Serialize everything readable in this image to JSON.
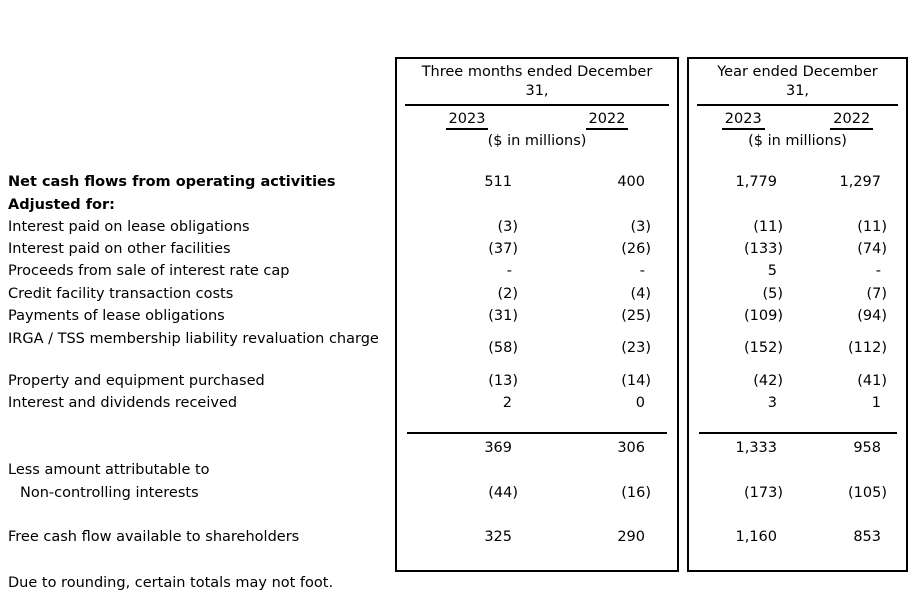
{
  "boxes": [
    {
      "title": "Three months ended December 31,",
      "col_2023": "2023",
      "col_2022": "2022",
      "units": "($ in millions)"
    },
    {
      "title": "Year ended December 31,",
      "col_2023": "2023",
      "col_2022": "2022",
      "units": "($ in millions)"
    }
  ],
  "rows": [
    {
      "label": "Net cash flows from operating activities",
      "values": [
        "511",
        "400",
        "1,779",
        "1,297"
      ]
    },
    {
      "label": "Adjusted for:",
      "values": [
        "",
        "",
        "",
        ""
      ]
    },
    {
      "label": "Interest paid on lease obligations",
      "values": [
        "(3)",
        "(3)",
        "(11)",
        "(11)"
      ]
    },
    {
      "label": "Interest paid on other facilities",
      "values": [
        "(37)",
        "(26)",
        "(133)",
        "(74)"
      ]
    },
    {
      "label": "Proceeds from sale of interest rate cap",
      "values": [
        "-",
        "-",
        "5",
        "-"
      ]
    },
    {
      "label": "Credit facility transaction costs",
      "values": [
        "(2)",
        "(4)",
        "(5)",
        "(7)"
      ]
    },
    {
      "label": "Payments of lease obligations",
      "values": [
        "(31)",
        "(25)",
        "(109)",
        "(94)"
      ]
    },
    {
      "label": "IRGA / TSS membership liability revaluation charge",
      "values": [
        "(58)",
        "(23)",
        "(152)",
        "(112)"
      ]
    },
    {
      "label": "Property and equipment purchased",
      "values": [
        "(13)",
        "(14)",
        "(42)",
        "(41)"
      ]
    },
    {
      "label": "Interest and dividends received",
      "values": [
        "2",
        "0",
        "3",
        "1"
      ]
    },
    {
      "label": "",
      "values": [
        "369",
        "306",
        "1,333",
        "958"
      ]
    },
    {
      "label": "Less amount attributable to",
      "values": [
        "",
        "",
        "",
        ""
      ]
    },
    {
      "label": "Non-controlling interests",
      "values": [
        "(44)",
        "(16)",
        "(173)",
        "(105)"
      ]
    },
    {
      "label": "Free cash flow available to shareholders",
      "values": [
        "325",
        "290",
        "1,160",
        "853"
      ]
    }
  ],
  "footnote": "Due to rounding, certain totals may not foot."
}
